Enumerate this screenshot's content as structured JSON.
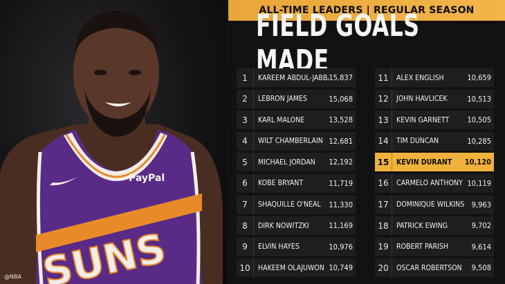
{
  "banner": "ALL-TIME LEADERS | REGULAR SEASON",
  "title": "FIELD GOALS MADE",
  "watermark": "@NBA",
  "jersey": {
    "sponsor": "PayPal",
    "team": "SUNS"
  },
  "colors": {
    "accent": "#f0b23c",
    "jersey": "#5a2b86"
  },
  "leaders_left": [
    {
      "rank": "1",
      "name": "Kareem Abdul-Jabbar",
      "value": "15,837"
    },
    {
      "rank": "2",
      "name": "LeBron James",
      "value": "15,068"
    },
    {
      "rank": "3",
      "name": "Karl Malone",
      "value": "13,528"
    },
    {
      "rank": "4",
      "name": "Wilt Chamberlain",
      "value": "12,681"
    },
    {
      "rank": "5",
      "name": "Michael Jordan",
      "value": "12,192"
    },
    {
      "rank": "6",
      "name": "Kobe Bryant",
      "value": "11,719"
    },
    {
      "rank": "7",
      "name": "Shaquille O'Neal",
      "value": "11,330"
    },
    {
      "rank": "8",
      "name": "Dirk Nowitzki",
      "value": "11,169"
    },
    {
      "rank": "9",
      "name": "Elvin Hayes",
      "value": "10,976"
    },
    {
      "rank": "10",
      "name": "Hakeem Olajuwon",
      "value": "10,749"
    }
  ],
  "leaders_right": [
    {
      "rank": "11",
      "name": "Alex English",
      "value": "10,659"
    },
    {
      "rank": "12",
      "name": "John Havlicek",
      "value": "10,513"
    },
    {
      "rank": "13",
      "name": "Kevin Garnett",
      "value": "10,505"
    },
    {
      "rank": "14",
      "name": "Tim Duncan",
      "value": "10,285"
    },
    {
      "rank": "15",
      "name": "Kevin Durant",
      "value": "10,120"
    },
    {
      "rank": "16",
      "name": "Carmelo Anthony",
      "value": "10,119"
    },
    {
      "rank": "17",
      "name": "Dominique Wilkins",
      "value": "9,963"
    },
    {
      "rank": "18",
      "name": "Patrick Ewing",
      "value": "9,702"
    },
    {
      "rank": "19",
      "name": "Robert Parish",
      "value": "9,614"
    },
    {
      "rank": "20",
      "name": "Oscar Robertson",
      "value": "9,508"
    }
  ],
  "highlight_rank": "15"
}
